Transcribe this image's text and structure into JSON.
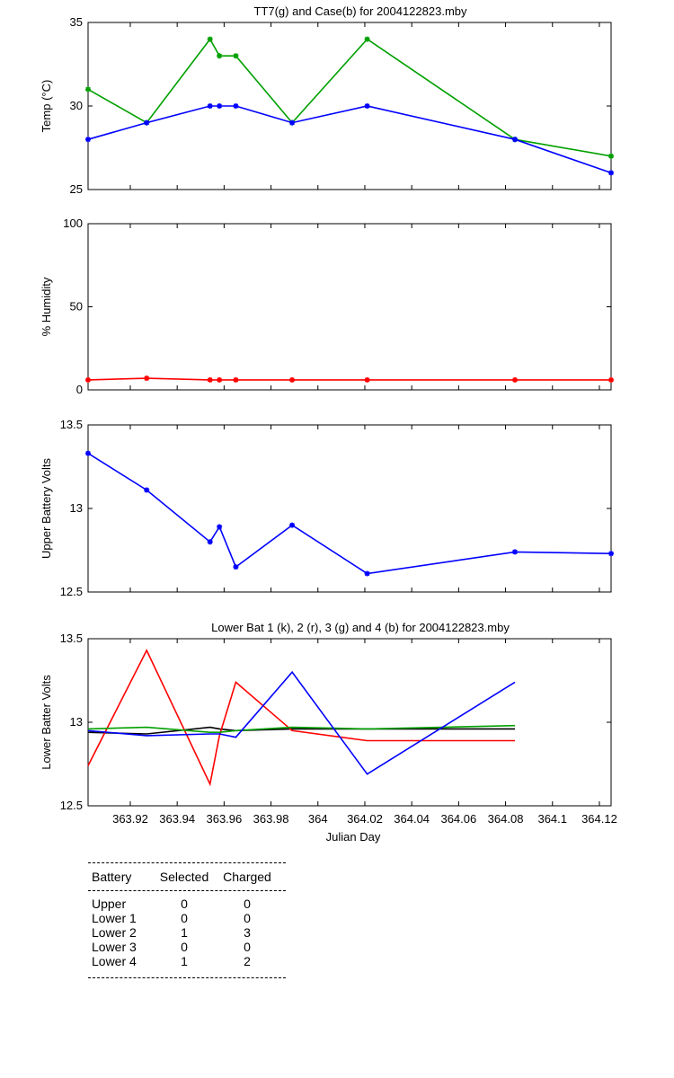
{
  "chart_data": [
    {
      "type": "line",
      "title": "TT7(g) and Case(b) for 2004122823.mby",
      "xlabel": "",
      "ylabel": "Temp  (°C)",
      "xlim": [
        363.902,
        364.125
      ],
      "ylim": [
        25,
        35
      ],
      "y_ticks": [
        25,
        30,
        35
      ],
      "x_tick_labels_shown": false,
      "series": [
        {
          "color": "#00a000",
          "marker": "star",
          "x": [
            363.902,
            363.927,
            363.954,
            363.958,
            363.965,
            363.989,
            364.021,
            364.084,
            364.125
          ],
          "y": [
            31,
            29,
            34,
            33,
            33,
            29,
            34,
            28,
            27
          ]
        },
        {
          "color": "#0000ff",
          "marker": "star",
          "x": [
            363.902,
            363.927,
            363.954,
            363.958,
            363.965,
            363.989,
            364.021,
            364.084,
            364.125
          ],
          "y": [
            28,
            29,
            30,
            30,
            30,
            29,
            30,
            28,
            26
          ]
        }
      ]
    },
    {
      "type": "line",
      "title": "",
      "xlabel": "",
      "ylabel": "% Humidity",
      "xlim": [
        363.902,
        364.125
      ],
      "ylim": [
        0,
        100
      ],
      "y_ticks": [
        0,
        50,
        100
      ],
      "x_tick_labels_shown": false,
      "series": [
        {
          "color": "#ff0000",
          "marker": "star",
          "x": [
            363.902,
            363.927,
            363.954,
            363.958,
            363.965,
            363.989,
            364.021,
            364.084,
            364.125
          ],
          "y": [
            6,
            7,
            6,
            6,
            6,
            6,
            6,
            6,
            6
          ]
        }
      ]
    },
    {
      "type": "line",
      "title": "",
      "xlabel": "",
      "ylabel": "Upper Battery Volts",
      "xlim": [
        363.902,
        364.125
      ],
      "ylim": [
        12.5,
        13.5
      ],
      "y_ticks": [
        12.5,
        13,
        13.5
      ],
      "x_tick_labels_shown": false,
      "series": [
        {
          "color": "#0000ff",
          "marker": "star",
          "x": [
            363.902,
            363.927,
            363.954,
            363.958,
            363.965,
            363.989,
            364.021,
            364.084,
            364.125
          ],
          "y": [
            13.33,
            13.11,
            12.8,
            12.89,
            12.65,
            12.9,
            12.61,
            12.74,
            12.73
          ]
        }
      ]
    },
    {
      "type": "line",
      "title": "Lower Bat 1 (k), 2 (r), 3 (g) and 4 (b) for 2004122823.mby",
      "xlabel": "Julian Day",
      "ylabel": "Lower Batter Volts",
      "xlim": [
        363.902,
        364.125
      ],
      "ylim": [
        12.5,
        13.5
      ],
      "y_ticks": [
        12.5,
        13,
        13.5
      ],
      "x_ticks": [
        363.92,
        363.94,
        363.96,
        363.98,
        364,
        364.02,
        364.04,
        364.06,
        364.08,
        364.1,
        364.12
      ],
      "x_tick_labels": [
        "363.92",
        "363.94",
        "363.96",
        "363.98",
        "364",
        "364.02",
        "364.04",
        "364.06",
        "364.08",
        "364.1",
        "364.12"
      ],
      "x_tick_labels_shown": true,
      "series": [
        {
          "color": "#000000",
          "x": [
            363.902,
            363.927,
            363.954,
            363.958,
            363.965,
            363.989,
            364.021,
            364.084
          ],
          "y": [
            12.94,
            12.93,
            12.97,
            12.96,
            12.95,
            12.96,
            12.96,
            12.96
          ]
        },
        {
          "color": "#ff0000",
          "x": [
            363.902,
            363.927,
            363.954,
            363.958,
            363.965,
            363.989,
            364.021,
            364.084
          ],
          "y": [
            12.74,
            13.43,
            12.63,
            12.92,
            13.24,
            12.95,
            12.89,
            12.89
          ]
        },
        {
          "color": "#00a000",
          "x": [
            363.902,
            363.927,
            363.954,
            363.958,
            363.965,
            363.989,
            364.021,
            364.084
          ],
          "y": [
            12.96,
            12.97,
            12.94,
            12.94,
            12.95,
            12.97,
            12.96,
            12.98
          ]
        },
        {
          "color": "#0000ff",
          "x": [
            363.902,
            363.927,
            363.954,
            363.958,
            363.965,
            363.989,
            364.021,
            364.084
          ],
          "y": [
            12.95,
            12.92,
            12.93,
            12.93,
            12.91,
            13.3,
            12.69,
            13.24
          ]
        }
      ]
    }
  ],
  "battery_table": {
    "headers": [
      "Battery",
      "Selected",
      "Charged"
    ],
    "rows": [
      {
        "battery": "Upper",
        "selected": "0",
        "charged": "0"
      },
      {
        "battery": "Lower 1",
        "selected": "0",
        "charged": "0"
      },
      {
        "battery": "Lower 2",
        "selected": "1",
        "charged": "3"
      },
      {
        "battery": "Lower 3",
        "selected": "0",
        "charged": "0"
      },
      {
        "battery": "Lower 4",
        "selected": "1",
        "charged": "2"
      }
    ]
  }
}
